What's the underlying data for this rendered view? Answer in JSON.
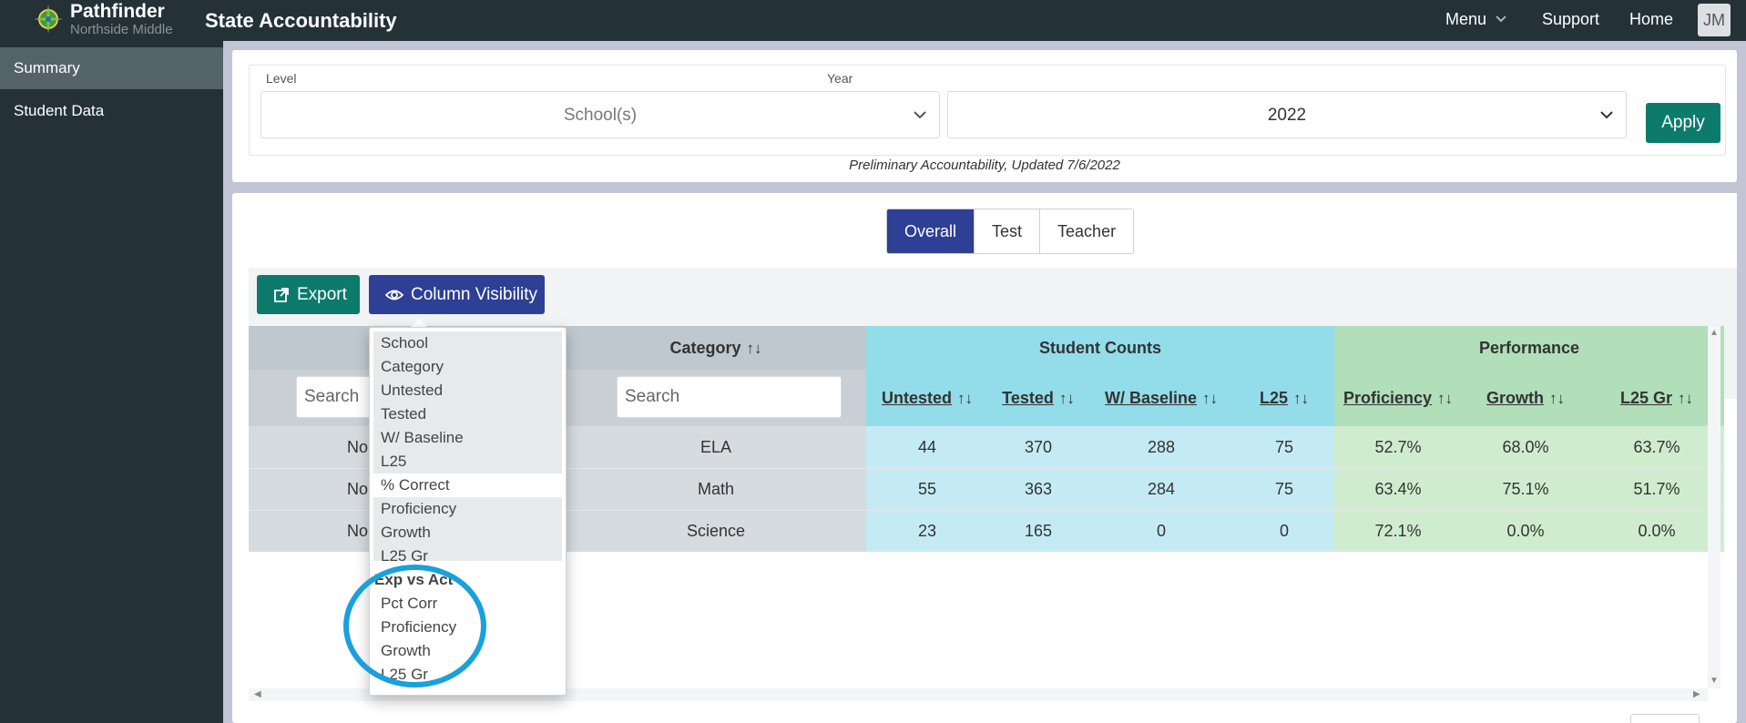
{
  "header": {
    "brand_name": "Pathfinder",
    "school": "Northside Middle",
    "app_title": "State Accountability",
    "nav": {
      "menu": "Menu",
      "support": "Support",
      "home": "Home"
    },
    "avatar_initials": "JM"
  },
  "sidebar": {
    "items": [
      {
        "label": "Summary",
        "active": true
      },
      {
        "label": "Student Data",
        "active": false
      }
    ]
  },
  "filters": {
    "level_label": "Level",
    "level_placeholder": "School(s)",
    "year_label": "Year",
    "year_value": "2022",
    "apply_label": "Apply",
    "note": "Preliminary Accountability, Updated 7/6/2022"
  },
  "tabs": [
    {
      "label": "Overall",
      "active": true
    },
    {
      "label": "Test",
      "active": false
    },
    {
      "label": "Teacher",
      "active": false
    }
  ],
  "toolbar": {
    "export_label": "Export",
    "colvis_label": "Column Visibility"
  },
  "table": {
    "group_headers": {
      "category": "Category",
      "student_counts": "Student Counts",
      "performance": "Performance"
    },
    "columns": {
      "untested": "Untested",
      "tested": "Tested",
      "w_baseline": "W/ Baseline",
      "l25": "L25",
      "proficiency": "Proficiency",
      "growth": "Growth",
      "l25_gr": "L25 Gr"
    },
    "search_placeholder": "Search",
    "rows": [
      {
        "school": "No",
        "category": "ELA",
        "untested": "44",
        "tested": "370",
        "w_baseline": "288",
        "l25": "75",
        "proficiency": "52.7%",
        "growth": "68.0%",
        "l25_gr": "63.7%"
      },
      {
        "school": "No",
        "category": "Math",
        "untested": "55",
        "tested": "363",
        "w_baseline": "284",
        "l25": "75",
        "proficiency": "63.4%",
        "growth": "75.1%",
        "l25_gr": "51.7%"
      },
      {
        "school": "No",
        "category": "Science",
        "untested": "23",
        "tested": "165",
        "w_baseline": "0",
        "l25": "0",
        "proficiency": "72.1%",
        "growth": "0.0%",
        "l25_gr": "0.0%"
      }
    ]
  },
  "column_visibility_menu": {
    "items": [
      {
        "label": "School",
        "selected": true
      },
      {
        "label": "Category",
        "selected": true
      },
      {
        "label": "Untested",
        "selected": true
      },
      {
        "label": "Tested",
        "selected": true
      },
      {
        "label": "W/ Baseline",
        "selected": true
      },
      {
        "label": "L25",
        "selected": true
      },
      {
        "label": "% Correct",
        "selected": false
      },
      {
        "label": "Proficiency",
        "selected": true
      },
      {
        "label": "Growth",
        "selected": true
      },
      {
        "label": "L25 Gr",
        "selected": true
      }
    ],
    "group_label": "Exp vs Act",
    "group_items": [
      {
        "label": "Pct Corr"
      },
      {
        "label": "Proficiency"
      },
      {
        "label": "Growth"
      },
      {
        "label": "L25 Gr"
      }
    ]
  },
  "colors": {
    "teal": "#0c7b6b",
    "navy": "#2d4095",
    "cyan": "#92dde9",
    "green": "#b0dfb9",
    "annotation": "#1aa0dc"
  }
}
